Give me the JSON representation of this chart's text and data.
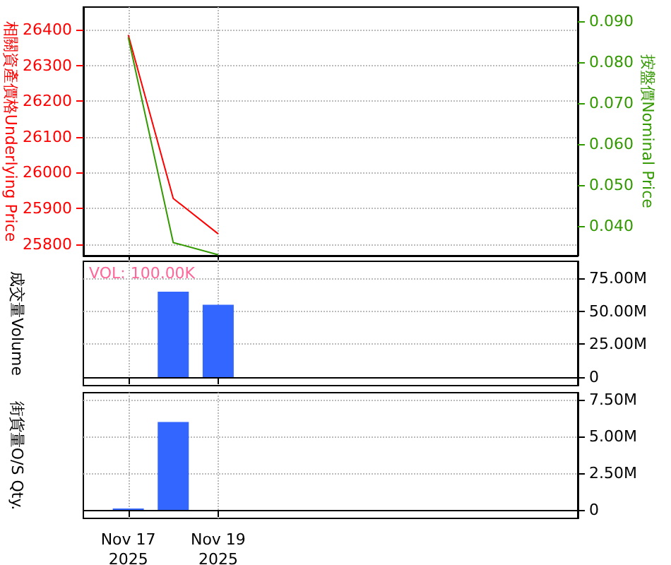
{
  "chart_data": [
    {
      "type": "line",
      "ylabel": "相關資產價格Underlying Price",
      "y2label": "按盤價Nominal Price",
      "x": [
        "2025-11-17",
        "2025-11-18",
        "2025-11-19"
      ],
      "series": [
        {
          "color": "#ff0000",
          "values": [
            26385,
            25928,
            25829
          ]
        },
        {
          "color": "#339900",
          "axis": "y2",
          "values": [
            0.086,
            0.036,
            0.033
          ]
        }
      ],
      "xlim": [
        "2025-11-16",
        "2025-11-27"
      ],
      "xticks": [
        {
          "value": "2025-11-17",
          "label": null
        },
        {
          "value": "2025-11-19",
          "label": null
        }
      ],
      "ylim": [
        25768,
        26463
      ],
      "yticks": [
        25800,
        25900,
        26000,
        26100,
        26200,
        26300,
        26400
      ],
      "y2lim": [
        0.0328,
        0.0934
      ],
      "y2ticks": [
        {
          "value": 0.04,
          "label": "0.040"
        },
        {
          "value": 0.05,
          "label": "0.050"
        },
        {
          "value": 0.06,
          "label": "0.060"
        },
        {
          "value": 0.07,
          "label": "0.070"
        },
        {
          "value": 0.08,
          "label": "0.080"
        },
        {
          "value": 0.09,
          "label": "0.090"
        }
      ],
      "grid": true,
      "tick_labels": "y"
    },
    {
      "type": "bar",
      "ylabel": "成交量Volume",
      "annotations": [
        "VOL: 100.00K"
      ],
      "x": [
        "2025-11-18",
        "2025-11-19"
      ],
      "series": [
        {
          "color": "#3366ff",
          "values": [
            65000000,
            55000000
          ]
        }
      ],
      "xlim": [
        "2025-11-16",
        "2025-11-27"
      ],
      "xticks": [
        {
          "value": "2025-11-17",
          "label": null
        },
        {
          "value": "2025-11-19",
          "label": null
        }
      ],
      "ylim": [
        -6400000,
        88000000
      ],
      "yticks": [
        0,
        {
          "value": 25000000,
          "label": "25.00M"
        },
        {
          "value": 50000000,
          "label": "50.00M"
        },
        {
          "value": 75000000,
          "label": "75.00M"
        }
      ],
      "grid": true,
      "tick_labels": "y"
    },
    {
      "type": "bar",
      "ylabel": "街貨量O/S Qty.",
      "x": [
        "2025-11-17",
        "2025-11-18"
      ],
      "series": [
        {
          "color": "#3366ff",
          "values": [
            100000,
            6000000
          ]
        }
      ],
      "xlim": [
        "2025-11-16",
        "2025-11-27"
      ],
      "xticks": [
        {
          "value": "2025-11-17",
          "label": "Nov 17\n2025"
        },
        {
          "value": "2025-11-19",
          "label": "Nov 19\n2025"
        }
      ],
      "ylim": [
        -580000,
        8000000
      ],
      "yticks": [
        0,
        {
          "value": 2500000,
          "label": "2.50M"
        },
        {
          "value": 5000000,
          "label": "5.00M"
        },
        {
          "value": 7500000,
          "label": "7.50M"
        }
      ],
      "grid": true
    }
  ]
}
